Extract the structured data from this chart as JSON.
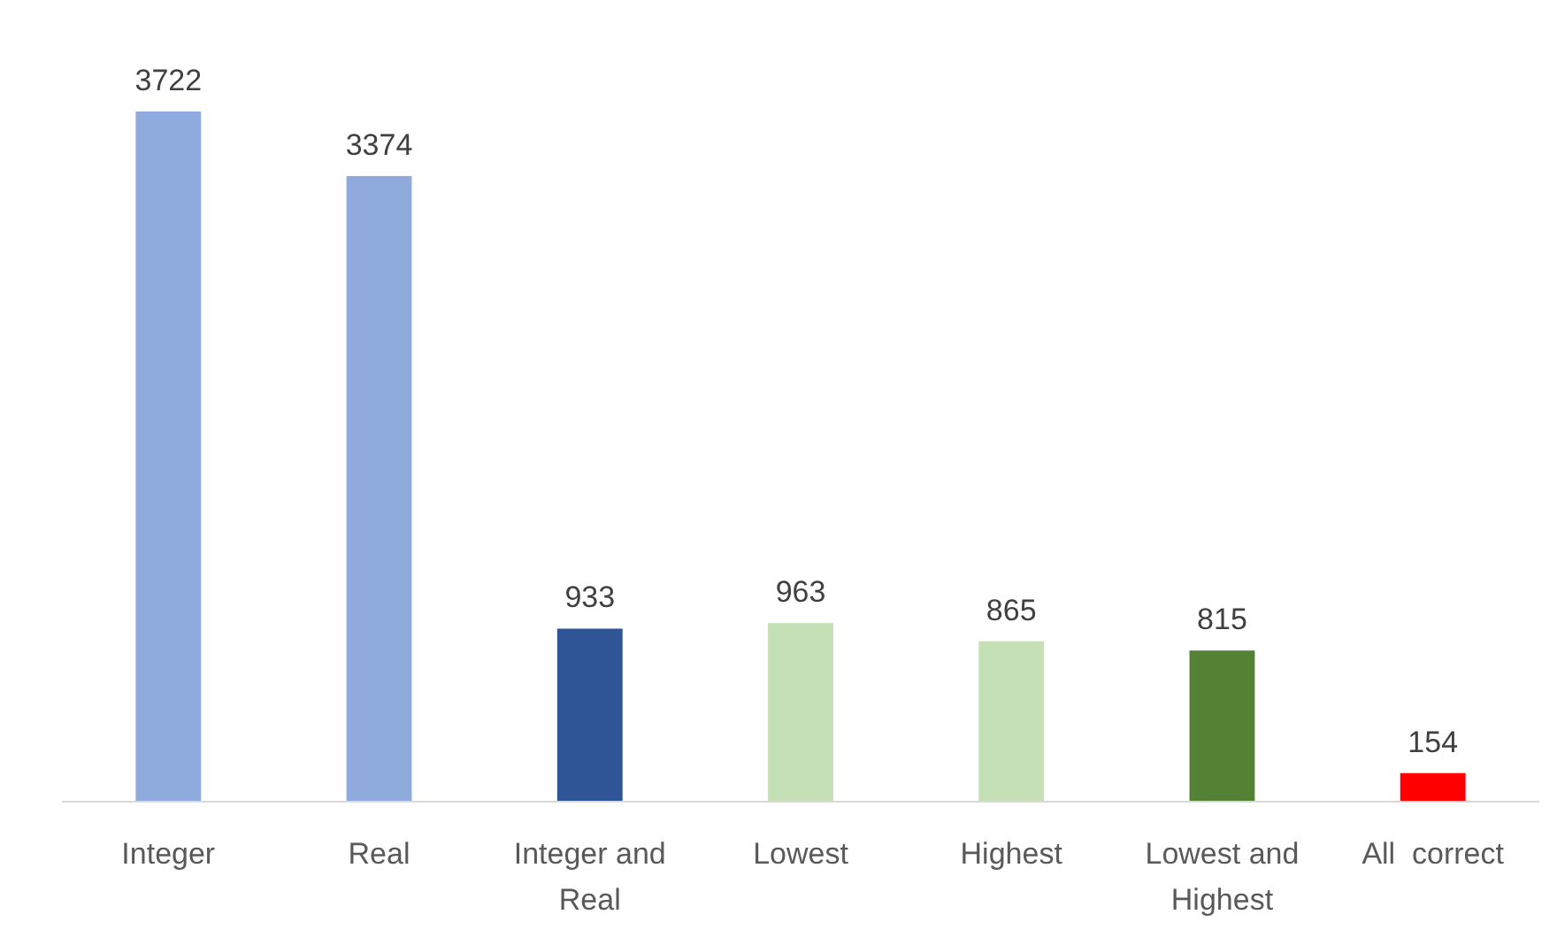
{
  "chart_data": {
    "type": "bar",
    "categories": [
      "Integer",
      "Real",
      "Integer and Real",
      "Lowest",
      "Highest",
      "Lowest and Highest",
      "All  correct"
    ],
    "values": [
      3722,
      3374,
      933,
      963,
      865,
      815,
      154
    ],
    "colors": [
      "#8faadc",
      "#8faadc",
      "#2f5597",
      "#c5e0b4",
      "#c5e0b4",
      "#548235",
      "#ff0000"
    ],
    "data_labels": true
  }
}
